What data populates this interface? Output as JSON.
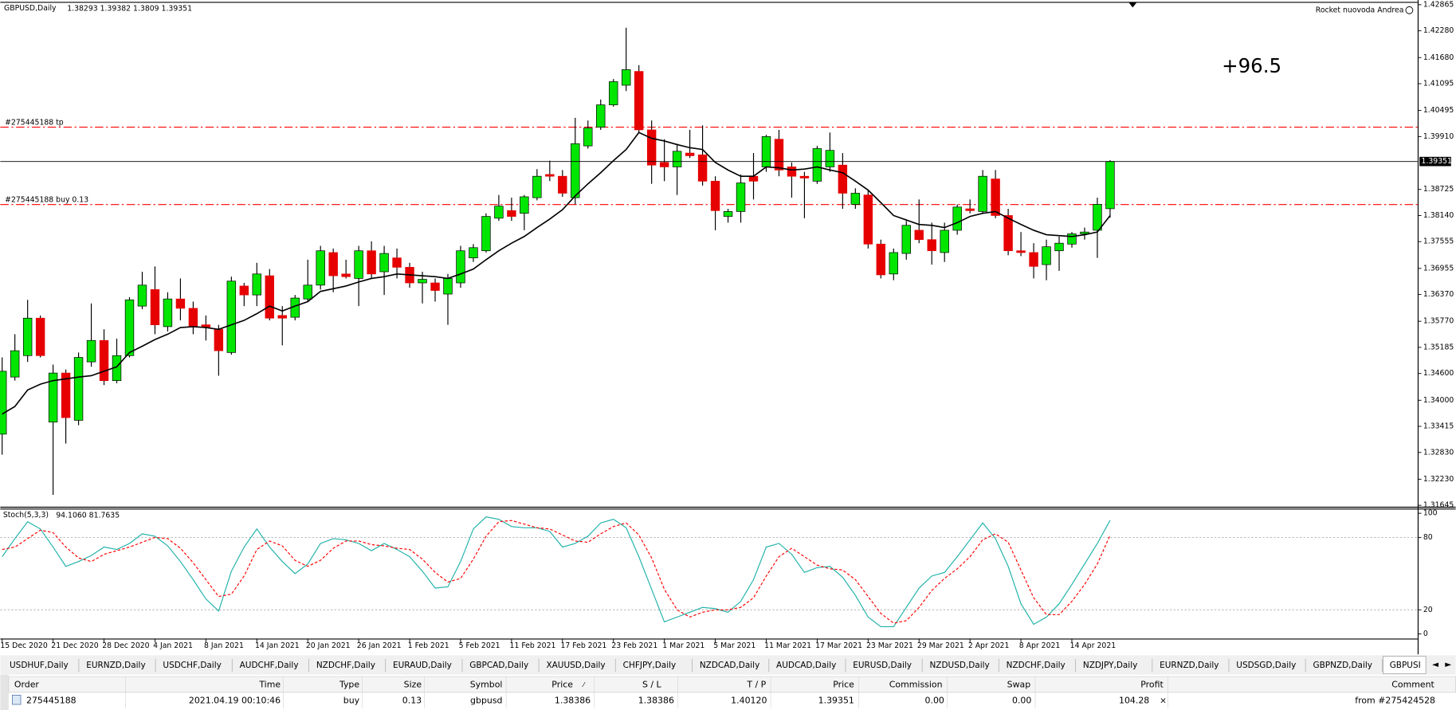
{
  "chart_data": [
    {
      "type": "candlestick",
      "title": "GBPUSD,Daily",
      "account": "Rocket nuovoda Andrea",
      "profit_label": "+96.5",
      "categories": [
        "15 Dec 2020",
        null,
        null,
        null,
        "21 Dec 2020",
        null,
        null,
        null,
        "28 Dec 2020",
        null,
        null,
        null,
        "4 Jan 2021",
        null,
        null,
        null,
        "8 Jan 2021",
        null,
        null,
        null,
        "14 Jan 2021",
        null,
        null,
        null,
        "20 Jan 2021",
        null,
        null,
        null,
        "26 Jan 2021",
        null,
        null,
        null,
        "1 Feb 2021",
        null,
        null,
        null,
        "5 Feb 2021",
        null,
        null,
        null,
        "11 Feb 2021",
        null,
        null,
        null,
        "17 Feb 2021",
        null,
        null,
        null,
        "23 Feb 2021",
        null,
        null,
        null,
        "1 Mar 2021",
        null,
        null,
        null,
        "5 Mar 2021",
        null,
        null,
        null,
        "11 Mar 2021",
        null,
        null,
        null,
        "17 Mar 2021",
        null,
        null,
        null,
        "23 Mar 2021",
        null,
        null,
        null,
        "29 Mar 2021",
        null,
        null,
        null,
        "2 Apr 2021",
        null,
        null,
        null,
        "8 Apr 2021",
        null,
        null,
        null,
        "14 Apr 2021",
        null,
        null,
        null
      ],
      "open": [
        1.3324,
        1.3452,
        1.35,
        1.3584,
        1.3351,
        1.3461,
        1.3355,
        1.3486,
        1.3534,
        1.3444,
        1.35,
        1.3611,
        1.3648,
        1.3565,
        1.3627,
        1.3606,
        1.3569,
        1.3559,
        1.3507,
        1.3656,
        1.3636,
        1.3679,
        1.359,
        1.3586,
        1.3627,
        1.3658,
        1.3731,
        1.3683,
        1.3673,
        1.3735,
        1.3688,
        1.3719,
        1.3698,
        1.3663,
        1.3663,
        1.3638,
        1.3663,
        1.3719,
        1.3735,
        1.3808,
        1.3825,
        1.3819,
        1.3854,
        1.3906,
        1.3902,
        1.3854,
        1.397,
        1.4012,
        1.4062,
        1.4106,
        1.4137,
        1.4006,
        1.3933,
        1.3923,
        1.3954,
        1.395,
        1.3891,
        1.3812,
        1.3823,
        1.3902,
        1.3923,
        1.3985,
        1.3923,
        1.3902,
        1.3891,
        1.3923,
        1.3927,
        1.3839,
        1.386,
        1.375,
        1.3683,
        1.3729,
        1.3781,
        1.376,
        1.3731,
        1.3781,
        1.3829,
        1.3823,
        1.3896,
        1.3814,
        1.3735,
        1.3731,
        1.3704,
        1.3735,
        1.375,
        1.3773,
        1.3781,
        1.38293
      ],
      "high": [
        1.3496,
        1.3548,
        1.3625,
        1.359,
        1.348,
        1.3469,
        1.3507,
        1.3617,
        1.3559,
        1.3538,
        1.3631,
        1.3688,
        1.37,
        1.3642,
        1.3673,
        1.3621,
        1.359,
        1.3569,
        1.3677,
        1.3663,
        1.3708,
        1.3694,
        1.3611,
        1.3636,
        1.3715,
        1.3746,
        1.374,
        1.3715,
        1.3746,
        1.3756,
        1.3746,
        1.374,
        1.3708,
        1.3688,
        1.3673,
        1.3683,
        1.3746,
        1.375,
        1.3819,
        1.386,
        1.3854,
        1.386,
        1.3918,
        1.3937,
        1.3916,
        1.4033,
        1.4027,
        1.4074,
        1.412,
        1.4235,
        1.4151,
        1.4027,
        1.3985,
        1.3975,
        1.4006,
        1.4016,
        1.3902,
        1.3829,
        1.3906,
        1.3954,
        1.3995,
        1.4006,
        1.3933,
        1.3912,
        1.397,
        1.4,
        1.3954,
        1.3875,
        1.3871,
        1.376,
        1.374,
        1.3802,
        1.385,
        1.3798,
        1.3798,
        1.3839,
        1.385,
        1.3916,
        1.3916,
        1.3829,
        1.3777,
        1.3752,
        1.376,
        1.3767,
        1.3777,
        1.3787,
        1.3854,
        1.39382
      ],
      "low": [
        1.3278,
        1.3444,
        1.3486,
        1.3496,
        1.3188,
        1.3303,
        1.3344,
        1.3475,
        1.3434,
        1.3438,
        1.3496,
        1.3604,
        1.3548,
        1.3554,
        1.3579,
        1.3548,
        1.3534,
        1.3455,
        1.3502,
        1.3611,
        1.3611,
        1.3579,
        1.3523,
        1.3579,
        1.3621,
        1.3648,
        1.3642,
        1.3673,
        1.3611,
        1.3673,
        1.3636,
        1.3673,
        1.3652,
        1.3617,
        1.3621,
        1.3569,
        1.3652,
        1.371,
        1.3731,
        1.3802,
        1.3802,
        1.3781,
        1.3848,
        1.3891,
        1.3856,
        1.3839,
        1.3964,
        1.4006,
        1.4058,
        1.4093,
        1.4,
        1.3885,
        1.3891,
        1.386,
        1.3943,
        1.3881,
        1.3781,
        1.3798,
        1.3798,
        1.385,
        1.3912,
        1.3902,
        1.3854,
        1.3808,
        1.3885,
        1.3912,
        1.3829,
        1.3829,
        1.374,
        1.3673,
        1.3669,
        1.3715,
        1.3752,
        1.3704,
        1.371,
        1.3771,
        1.3819,
        1.3819,
        1.3808,
        1.3725,
        1.3723,
        1.3673,
        1.3669,
        1.369,
        1.3742,
        1.376,
        1.3719,
        1.3809
      ],
      "close": [
        1.3465,
        1.3511,
        1.3584,
        1.35,
        1.3461,
        1.3361,
        1.3496,
        1.3534,
        1.3444,
        1.35,
        1.3625,
        1.3658,
        1.3569,
        1.3627,
        1.3606,
        1.3565,
        1.3563,
        1.3511,
        1.3667,
        1.3636,
        1.3683,
        1.3584,
        1.3584,
        1.3629,
        1.3658,
        1.3735,
        1.3679,
        1.3677,
        1.3735,
        1.3683,
        1.3729,
        1.3698,
        1.3663,
        1.3671,
        1.3646,
        1.3673,
        1.3735,
        1.3742,
        1.3812,
        1.3835,
        1.3812,
        1.3856,
        1.3902,
        1.3902,
        1.3864,
        1.3975,
        1.401,
        1.4062,
        1.4114,
        1.4141,
        1.4006,
        1.3927,
        1.3923,
        1.3958,
        1.3948,
        1.3891,
        1.3825,
        1.3823,
        1.3887,
        1.3891,
        1.3991,
        1.3916,
        1.3902,
        1.3898,
        1.3964,
        1.396,
        1.3864,
        1.3864,
        1.375,
        1.3681,
        1.3731,
        1.3792,
        1.376,
        1.3735,
        1.3781,
        1.3833,
        1.3825,
        1.3902,
        1.3814,
        1.3735,
        1.3731,
        1.37,
        1.3744,
        1.3752,
        1.3773,
        1.3777,
        1.3839,
        1.39351
      ],
      "bull_color": "#00e600",
      "bear_color": "#e60000",
      "ma": {
        "color": "#000000",
        "values": [
          1.3369,
          1.3386,
          1.3423,
          1.3436,
          1.3444,
          1.3448,
          1.3452,
          1.3455,
          1.3465,
          1.3475,
          1.3507,
          1.3521,
          1.3536,
          1.3548,
          1.3563,
          1.3565,
          1.3563,
          1.3559,
          1.3569,
          1.3579,
          1.3594,
          1.3611,
          1.36,
          1.3611,
          1.3621,
          1.3644,
          1.365,
          1.3656,
          1.3665,
          1.3673,
          1.3677,
          1.3683,
          1.3681,
          1.3679,
          1.3677,
          1.3673,
          1.3683,
          1.3694,
          1.3715,
          1.3735,
          1.3752,
          1.3767,
          1.3787,
          1.3806,
          1.3827,
          1.3858,
          1.3885,
          1.391,
          1.3937,
          1.3962,
          1.4,
          1.3987,
          1.3981,
          1.3973,
          1.3966,
          1.3962,
          1.3933,
          1.3916,
          1.3902,
          1.3902,
          1.3923,
          1.3921,
          1.3916,
          1.3918,
          1.3923,
          1.3916,
          1.391,
          1.3891,
          1.3871,
          1.3843,
          1.3814,
          1.3804,
          1.3794,
          1.3792,
          1.3787,
          1.3798,
          1.3812,
          1.3819,
          1.3823,
          1.3808,
          1.3794,
          1.3781,
          1.3771,
          1.3769,
          1.3767,
          1.3771,
          1.3777,
          1.3814
        ]
      },
      "order_lines": [
        {
          "label": "#275445188 tp",
          "value": 1.4012,
          "color": "#ff0000"
        },
        {
          "label": "#275445188 buy 0.13",
          "value": 1.38386,
          "color": "#ff0000"
        }
      ],
      "ylim": [
        1.31613,
        1.42908
      ],
      "yticks": [
        1.42865,
        {
          "value": 1.4228,
          "label": "1.42280"
        },
        {
          "value": 1.4168,
          "label": "1.41680"
        },
        1.41095,
        1.40495,
        {
          "value": 1.3991,
          "label": "1.39910"
        },
        1.38725,
        {
          "value": 1.3814,
          "label": "1.38140"
        },
        1.37555,
        1.36955,
        {
          "value": 1.3637,
          "label": "1.36370"
        },
        {
          "value": 1.3577,
          "label": "1.35770"
        },
        1.35185,
        {
          "value": 1.346,
          "label": "1.34600"
        },
        {
          "value": 1.34,
          "label": "1.34000"
        },
        1.33415,
        {
          "value": 1.3283,
          "label": "1.32830"
        },
        {
          "value": 1.3223,
          "label": "1.32230"
        },
        1.31645
      ]
    },
    {
      "type": "line",
      "title": "Stoch(5,3,3)",
      "series": [
        {
          "color": "#20b2aa",
          "dashed": false,
          "last_label": "94.1060",
          "values": [
            64,
            79,
            93,
            87,
            72,
            56,
            60,
            65,
            72,
            70,
            75,
            83,
            81,
            73,
            60,
            45,
            29,
            19,
            52,
            72,
            87,
            72,
            60,
            50,
            58,
            75,
            79,
            78,
            75,
            69,
            75,
            70,
            64,
            52,
            38,
            39,
            60,
            87,
            97,
            95,
            89,
            88,
            88,
            85,
            72,
            75,
            81,
            92,
            95,
            88,
            64,
            37,
            10,
            14,
            18,
            22,
            21,
            18,
            27,
            45,
            72,
            75,
            66,
            51,
            55,
            56,
            47,
            32,
            14,
            6,
            6,
            22,
            38,
            48,
            51,
            64,
            78,
            92,
            79,
            56,
            25,
            8,
            14,
            25,
            41,
            58,
            75,
            94.106
          ]
        },
        {
          "color": "#ff0000",
          "dashed": true,
          "last_label": "81.7635",
          "values": [
            70,
            72,
            79,
            86,
            84,
            72,
            63,
            60,
            66,
            69,
            72,
            76,
            80,
            79,
            71,
            59,
            45,
            31,
            33,
            48,
            70,
            77,
            73,
            61,
            56,
            61,
            71,
            77,
            77,
            74,
            73,
            71,
            70,
            62,
            51,
            43,
            46,
            62,
            81,
            93,
            94,
            91,
            88,
            87,
            82,
            77,
            76,
            83,
            89,
            92,
            82,
            63,
            37,
            20,
            14,
            18,
            20,
            20,
            22,
            30,
            48,
            64,
            71,
            64,
            57,
            54,
            53,
            45,
            31,
            17,
            9,
            11,
            22,
            36,
            46,
            54,
            64,
            78,
            83,
            76,
            53,
            30,
            16,
            16,
            27,
            41,
            58,
            81.7635
          ]
        }
      ],
      "levels": [
        20,
        80
      ],
      "ylim": [
        -3.8,
        103.1
      ],
      "yticks": [
        100,
        80,
        20,
        0
      ]
    }
  ],
  "tabs": [
    "USDHUF,Daily",
    "EURNZD,Daily",
    "USDCHF,Daily",
    "AUDCHF,Daily",
    "NZDCHF,Daily",
    "EURAUD,Daily",
    "GBPCAD,Daily",
    "XAUUSD,Daily",
    "CHFJPY,Daily",
    "NZDCAD,Daily",
    "AUDCAD,Daily",
    "EURUSD,Daily",
    "NZDUSD,Daily",
    "NZDCHF,Daily",
    "NZDJPY,Daily",
    "EURNZD,Daily",
    "USDSGD,Daily",
    "GBPNZD,Daily",
    "GBPUSI"
  ],
  "active_tab": 18,
  "terminal": {
    "columns": [
      "Order",
      "Time",
      "Type",
      "Size",
      "Symbol",
      "Price",
      "S / L",
      "T / P",
      "Price",
      "Commission",
      "Swap",
      "Profit",
      "Comment"
    ],
    "rows": [
      [
        "275445188",
        "2021.04.19 00:10:46",
        "buy",
        "0.13",
        "gbpusd",
        "1.38386",
        "1.38386",
        "1.40120",
        "1.39351",
        "0.00",
        "0.00",
        "104.28",
        "from #275424528"
      ]
    ]
  }
}
